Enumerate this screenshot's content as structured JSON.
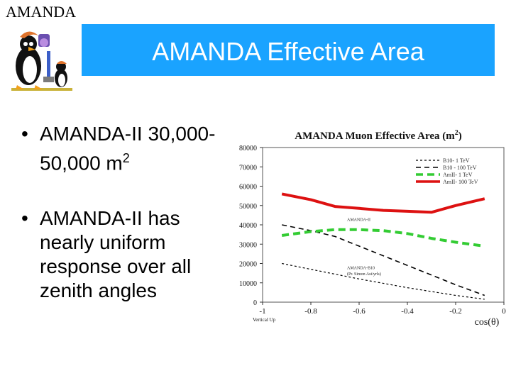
{
  "header": {
    "corner_label": "AMANDA",
    "slide_title": "AMANDA Effective Area"
  },
  "bullets": [
    {
      "text": "AMANDA-II 30,000-50,000 m",
      "sup": "2"
    },
    {
      "text": "AMANDA-II has nearly uniform response over all zenith angles"
    }
  ],
  "colors": {
    "banner": "#1aa3ff",
    "red": "#dd1111",
    "green": "#33cc33",
    "black": "#000000"
  },
  "chart_data": {
    "type": "line",
    "title": "AMANDA Muon Effective Area (m",
    "title_sup": "2",
    "title_close": ")",
    "xlabel": "cos(θ)",
    "xlabel_left": "Vertical Up",
    "xlim": [
      -1,
      0
    ],
    "ylim": [
      0,
      80000
    ],
    "xticks": [
      "-1",
      "-0.8",
      "-0.6",
      "-0.4",
      "-0.2",
      "0"
    ],
    "yticks": [
      "0",
      "10000",
      "20000",
      "30000",
      "40000",
      "50000",
      "60000",
      "70000",
      "80000"
    ],
    "annotations": [
      {
        "text": "AMANDA-II",
        "x": -0.65,
        "y": 42000
      },
      {
        "text": "AMANDA-B10",
        "x": -0.65,
        "y": 17000
      },
      {
        "text": "(Pr. Simon Ast/yrls)",
        "x": -0.65,
        "y": 14000
      }
    ],
    "series": [
      {
        "name": "B10- 1 TeV",
        "color": "#000000",
        "dash": "3,3",
        "width": 1.2,
        "x": [
          -0.92,
          -0.8,
          -0.6,
          -0.4,
          -0.2,
          -0.08
        ],
        "y": [
          20000,
          17000,
          12000,
          7500,
          3500,
          1500
        ]
      },
      {
        "name": "B10 - 100 TeV",
        "color": "#000000",
        "dash": "7,5",
        "width": 1.6,
        "x": [
          -0.92,
          -0.8,
          -0.7,
          -0.6,
          -0.5,
          -0.4,
          -0.3,
          -0.2,
          -0.08
        ],
        "y": [
          40000,
          37000,
          34000,
          29000,
          24000,
          19000,
          14000,
          9000,
          3500
        ]
      },
      {
        "name": "AmII- 1 TeV",
        "color": "#33cc33",
        "dash": "10,6",
        "width": 4,
        "x": [
          -0.92,
          -0.8,
          -0.7,
          -0.6,
          -0.5,
          -0.4,
          -0.3,
          -0.2,
          -0.08
        ],
        "y": [
          34500,
          36500,
          37500,
          37500,
          37000,
          35500,
          33000,
          31000,
          29000
        ]
      },
      {
        "name": "AmII- 100 TeV",
        "color": "#dd1111",
        "dash": "",
        "width": 4,
        "x": [
          -0.92,
          -0.8,
          -0.7,
          -0.6,
          -0.5,
          -0.4,
          -0.3,
          -0.2,
          -0.08
        ],
        "y": [
          56000,
          53000,
          49500,
          48500,
          47500,
          47000,
          46500,
          50000,
          53500
        ]
      }
    ]
  }
}
